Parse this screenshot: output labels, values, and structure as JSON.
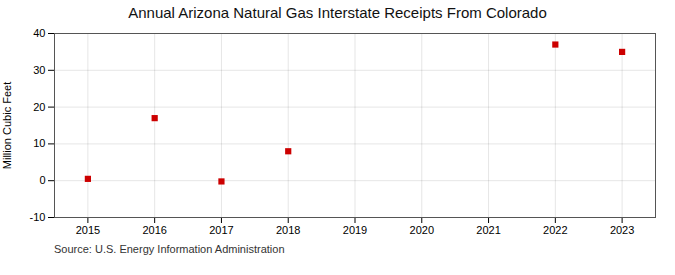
{
  "chart_data": {
    "type": "scatter",
    "title": "Annual Arizona Natural Gas Interstate Receipts From Colorado",
    "ylabel": "Million Cubic Feet",
    "source": "Source: U.S. Energy Information Administration",
    "x": [
      2015,
      2016,
      2017,
      2018,
      2022,
      2023
    ],
    "values": [
      0.5,
      17.0,
      -0.2,
      8.0,
      37.0,
      35.0
    ],
    "color": "#cc0000",
    "marker": "square",
    "xlim": [
      2014.5,
      2023.5
    ],
    "xticks": [
      2015,
      2016,
      2017,
      2018,
      2019,
      2020,
      2021,
      2022,
      2023
    ],
    "ylim": [
      -10,
      40
    ],
    "yticks": [
      -10,
      0,
      10,
      20,
      30,
      40
    ],
    "grid": true
  }
}
